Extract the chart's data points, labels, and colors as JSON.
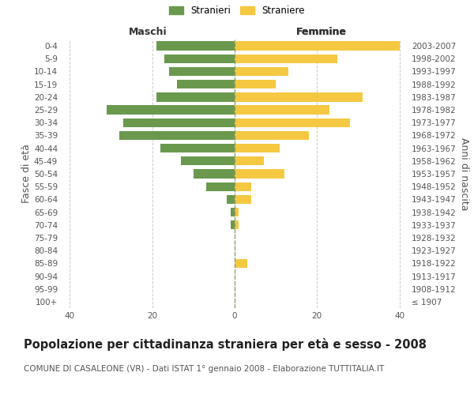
{
  "age_groups": [
    "100+",
    "95-99",
    "90-94",
    "85-89",
    "80-84",
    "75-79",
    "70-74",
    "65-69",
    "60-64",
    "55-59",
    "50-54",
    "45-49",
    "40-44",
    "35-39",
    "30-34",
    "25-29",
    "20-24",
    "15-19",
    "10-14",
    "5-9",
    "0-4"
  ],
  "birth_years": [
    "≤ 1907",
    "1908-1912",
    "1913-1917",
    "1918-1922",
    "1923-1927",
    "1928-1932",
    "1933-1937",
    "1938-1942",
    "1943-1947",
    "1948-1952",
    "1953-1957",
    "1958-1962",
    "1963-1967",
    "1968-1972",
    "1973-1977",
    "1978-1982",
    "1983-1987",
    "1988-1992",
    "1993-1997",
    "1998-2002",
    "2003-2007"
  ],
  "males": [
    0,
    0,
    0,
    0,
    0,
    0,
    1,
    1,
    2,
    7,
    10,
    13,
    18,
    28,
    27,
    31,
    19,
    14,
    16,
    17,
    19
  ],
  "females": [
    0,
    0,
    0,
    3,
    0,
    0,
    1,
    1,
    4,
    4,
    12,
    7,
    11,
    18,
    28,
    23,
    31,
    10,
    13,
    25,
    40
  ],
  "male_color": "#6a994e",
  "female_color": "#f5c842",
  "center_line_color": "#999966",
  "background_color": "#ffffff",
  "grid_color": "#cccccc",
  "title": "Popolazione per cittadinanza straniera per età e sesso - 2008",
  "subtitle": "COMUNE DI CASALEONE (VR) - Dati ISTAT 1° gennaio 2008 - Elaborazione TUTTITALIA.IT",
  "ylabel_left": "Fasce di età",
  "ylabel_right": "Anni di nascita",
  "xlabel_left": "Maschi",
  "xlabel_right": "Femmine",
  "legend_stranieri": "Stranieri",
  "legend_straniere": "Straniere",
  "xlim": 42,
  "title_fontsize": 10.5,
  "subtitle_fontsize": 7.5,
  "tick_fontsize": 7.5,
  "label_fontsize": 9
}
